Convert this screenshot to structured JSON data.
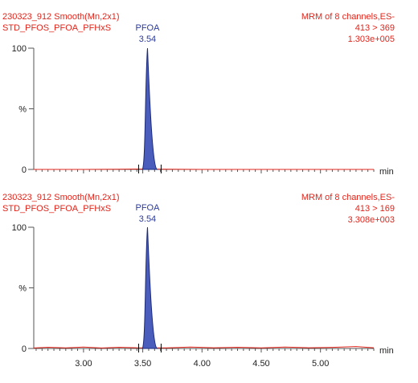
{
  "chart_data": [
    {
      "type": "line",
      "header_left": [
        "230323_912 Smooth(Mn,2x1)",
        "STD_PFOS_PFOA_PFHxS"
      ],
      "header_right": [
        "MRM of 8 channels,ES-",
        "413 > 369",
        "1.303e+005"
      ],
      "peak_label": {
        "name": "PFOA",
        "rt": "3.54"
      },
      "ylabel": "%",
      "y_ticks": [
        "100",
        "0"
      ],
      "ylim": [
        0,
        100
      ],
      "xlim": [
        2.58,
        5.45
      ],
      "xlabel": "min",
      "peak": {
        "apex_x": 3.54,
        "apex_y": 100,
        "start_x": 3.497,
        "end_x": 3.62,
        "integration_start": 3.465,
        "integration_end": 3.655
      },
      "baseline": {
        "x": [
          2.58,
          3.0,
          3.3,
          3.46,
          4.0,
          4.5,
          5.0,
          5.45
        ],
        "y": [
          0.0,
          0.0,
          0.2,
          0.3,
          0.0,
          0.0,
          0.0,
          0.0
        ]
      },
      "show_x_tick_labels": false
    },
    {
      "type": "line",
      "header_left": [
        "230323_912 Smooth(Mn,2x1)",
        "STD_PFOS_PFOA_PFHxS"
      ],
      "header_right": [
        "MRM of 8 channels,ES-",
        "413 > 169",
        "3.308e+003"
      ],
      "peak_label": {
        "name": "PFOA",
        "rt": "3.54"
      },
      "ylabel": "%",
      "y_ticks": [
        "100",
        "0"
      ],
      "ylim": [
        0,
        100
      ],
      "xlim": [
        2.58,
        5.45
      ],
      "xlabel": "min",
      "peak": {
        "apex_x": 3.54,
        "apex_y": 100,
        "start_x": 3.497,
        "end_x": 3.62,
        "integration_start": 3.465,
        "integration_end": 3.655
      },
      "baseline": {
        "x": [
          2.58,
          2.7,
          2.85,
          3.0,
          3.15,
          3.3,
          3.45,
          3.7,
          3.9,
          4.1,
          4.3,
          4.5,
          4.7,
          4.9,
          5.1,
          5.3,
          5.45
        ],
        "y": [
          0.4,
          1.0,
          0.5,
          1.2,
          0.4,
          1.0,
          0.6,
          0.5,
          1.2,
          0.6,
          1.0,
          0.5,
          1.1,
          0.6,
          0.9,
          1.6,
          0.6
        ]
      },
      "x_tick_labels": [
        "3.00",
        "3.50",
        "4.00",
        "4.50",
        "5.00"
      ],
      "show_x_tick_labels": true
    }
  ],
  "colors": {
    "header": "#e1251b",
    "peak_label": "#2b3a9c",
    "trace": "#e1251b",
    "peak_fill": "#4a5dbc",
    "peak_outline": "#1b2a7a",
    "axis": "#555555",
    "text": "#222222"
  }
}
